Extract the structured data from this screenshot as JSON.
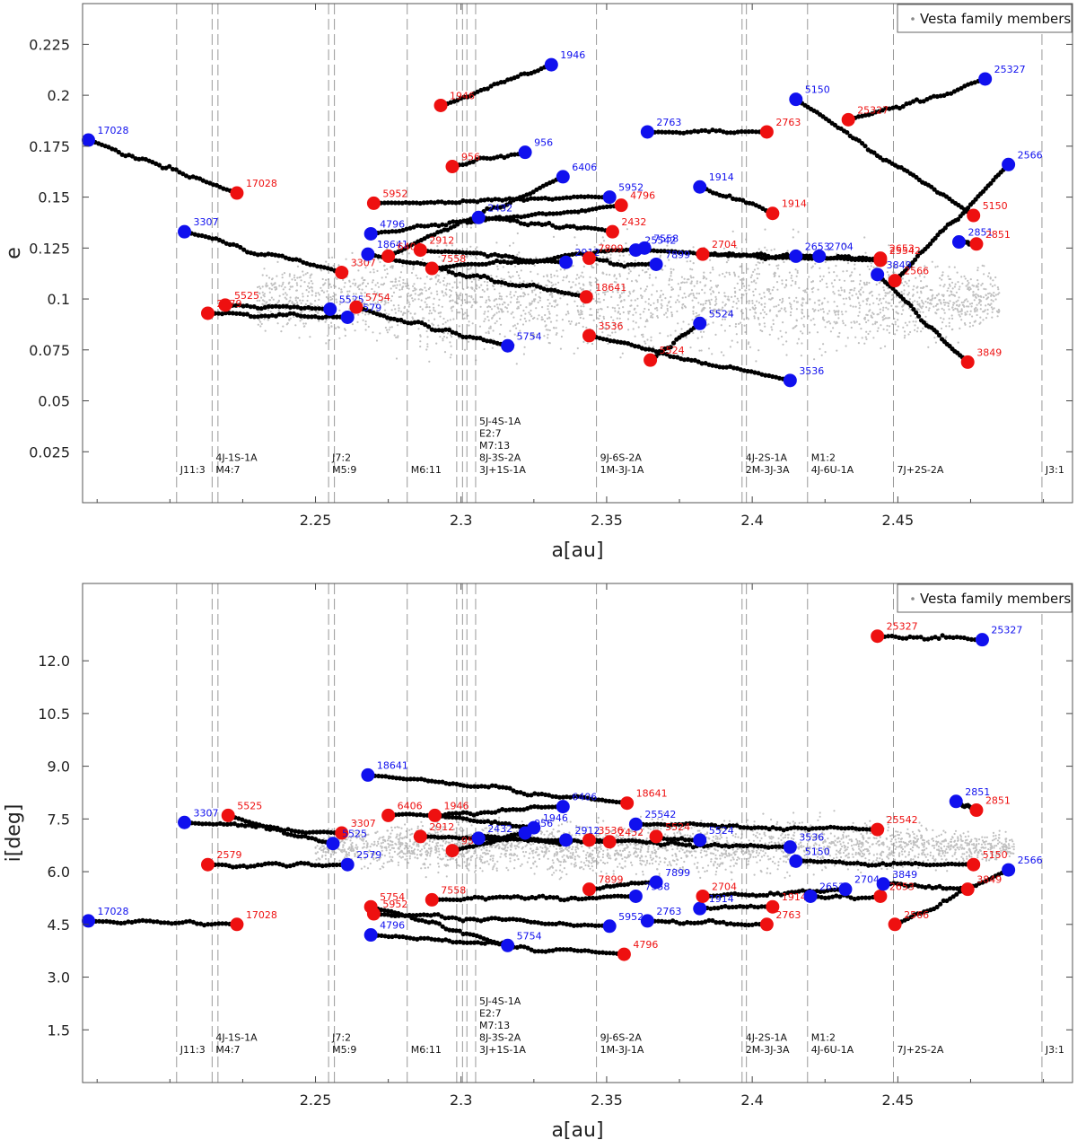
{
  "legend_label": "Vesta family members",
  "colors": {
    "background_members": "#c0c0c0",
    "track": "#000000",
    "start_marker": "#1010ee",
    "end_marker": "#ee1010",
    "resonance_line": "#999999"
  },
  "chart_data": [
    {
      "type": "scatter",
      "xlabel": "a[au]",
      "ylabel": "e",
      "xlim": [
        2.17,
        2.51
      ],
      "ylim": [
        0.0,
        0.245
      ],
      "xticks": [
        2.25,
        2.3,
        2.35,
        2.4,
        2.45
      ],
      "xtick_labels": [
        "2.25",
        "2.3",
        "2.35",
        "2.4",
        "2.45"
      ],
      "yticks": [
        0.025,
        0.05,
        0.075,
        0.1,
        0.125,
        0.15,
        0.175,
        0.2,
        0.225
      ],
      "ytick_labels": [
        "0.025",
        "0.05",
        "0.075",
        "0.1",
        "0.125",
        "0.15",
        "0.175",
        "0.2",
        "0.225"
      ],
      "legend_position": "top-right",
      "background_cloud": {
        "x_range": [
          2.23,
          2.485
        ],
        "y_center": 0.1,
        "y_halfwidth": 0.028
      },
      "tracks": [
        {
          "id": "17028",
          "start": [
            2.172,
            0.178
          ],
          "end": [
            2.223,
            0.152
          ]
        },
        {
          "id": "3307",
          "start": [
            2.205,
            0.133
          ],
          "end": [
            2.259,
            0.113
          ]
        },
        {
          "id": "2579",
          "start": [
            2.261,
            0.091
          ],
          "end": [
            2.213,
            0.093
          ]
        },
        {
          "id": "5525",
          "start": [
            2.255,
            0.095
          ],
          "end": [
            2.219,
            0.097
          ]
        },
        {
          "id": "18641",
          "start": [
            2.268,
            0.122
          ],
          "end": [
            2.343,
            0.101
          ]
        },
        {
          "id": "4796",
          "start": [
            2.269,
            0.132
          ],
          "end": [
            2.355,
            0.146
          ]
        },
        {
          "id": "5754",
          "start": [
            2.316,
            0.077
          ],
          "end": [
            2.264,
            0.096
          ]
        },
        {
          "id": "5952",
          "start": [
            2.351,
            0.15
          ],
          "end": [
            2.27,
            0.147
          ]
        },
        {
          "id": "6406",
          "start": [
            2.335,
            0.16
          ],
          "end": [
            2.275,
            0.121
          ]
        },
        {
          "id": "2912",
          "start": [
            2.336,
            0.118
          ],
          "end": [
            2.286,
            0.124
          ]
        },
        {
          "id": "7558",
          "start": [
            2.363,
            0.125
          ],
          "end": [
            2.29,
            0.115
          ]
        },
        {
          "id": "1946",
          "start": [
            2.331,
            0.215
          ],
          "end": [
            2.293,
            0.195
          ]
        },
        {
          "id": "956",
          "start": [
            2.322,
            0.172
          ],
          "end": [
            2.297,
            0.165
          ]
        },
        {
          "id": "2432",
          "start": [
            2.306,
            0.14
          ],
          "end": [
            2.352,
            0.133
          ]
        },
        {
          "id": "7899",
          "start": [
            2.367,
            0.117
          ],
          "end": [
            2.344,
            0.12
          ]
        },
        {
          "id": "25542",
          "start": [
            2.36,
            0.124
          ],
          "end": [
            2.444,
            0.119
          ]
        },
        {
          "id": "3536",
          "start": [
            2.413,
            0.06
          ],
          "end": [
            2.344,
            0.082
          ]
        },
        {
          "id": "5524",
          "start": [
            2.382,
            0.088
          ],
          "end": [
            2.365,
            0.07
          ]
        },
        {
          "id": "2763",
          "start": [
            2.364,
            0.182
          ],
          "end": [
            2.405,
            0.182
          ]
        },
        {
          "id": "2704",
          "start": [
            2.423,
            0.121
          ],
          "end": [
            2.383,
            0.122
          ]
        },
        {
          "id": "1914",
          "start": [
            2.382,
            0.155
          ],
          "end": [
            2.407,
            0.142
          ]
        },
        {
          "id": "5150",
          "start": [
            2.415,
            0.198
          ],
          "end": [
            2.476,
            0.141
          ]
        },
        {
          "id": "2653",
          "start": [
            2.415,
            0.121
          ],
          "end": [
            2.444,
            0.12
          ]
        },
        {
          "id": "25327",
          "start": [
            2.48,
            0.208
          ],
          "end": [
            2.433,
            0.188
          ]
        },
        {
          "id": "3849",
          "start": [
            2.443,
            0.112
          ],
          "end": [
            2.474,
            0.069
          ]
        },
        {
          "id": "2566",
          "start": [
            2.488,
            0.166
          ],
          "end": [
            2.449,
            0.109
          ]
        },
        {
          "id": "2851",
          "start": [
            2.471,
            0.128
          ],
          "end": [
            2.477,
            0.127
          ]
        }
      ]
    },
    {
      "type": "scatter",
      "xlabel": "a[au]",
      "ylabel": "i[deg]",
      "xlim": [
        2.17,
        2.51
      ],
      "ylim": [
        0.0,
        14.2
      ],
      "xticks": [
        2.25,
        2.3,
        2.35,
        2.4,
        2.45
      ],
      "xtick_labels": [
        "2.25",
        "2.3",
        "2.35",
        "2.4",
        "2.45"
      ],
      "yticks": [
        1.5,
        3.0,
        4.5,
        6.0,
        7.5,
        9.0,
        10.5,
        12.0
      ],
      "ytick_labels": [
        "1.5",
        "3.0",
        "4.5",
        "6.0",
        "7.5",
        "9.0",
        "10.5",
        "12.0"
      ],
      "legend_position": "top-right",
      "background_cloud": {
        "x_range": [
          2.25,
          2.49
        ],
        "y_center": 6.7,
        "y_halfwidth": 0.8
      },
      "tracks": [
        {
          "id": "17028",
          "start": [
            2.172,
            4.6
          ],
          "end": [
            2.223,
            4.5
          ]
        },
        {
          "id": "3307",
          "start": [
            2.205,
            7.4
          ],
          "end": [
            2.259,
            7.1
          ]
        },
        {
          "id": "5525",
          "start": [
            2.256,
            6.8
          ],
          "end": [
            2.22,
            7.6
          ]
        },
        {
          "id": "2579",
          "start": [
            2.261,
            6.2
          ],
          "end": [
            2.213,
            6.2
          ]
        },
        {
          "id": "18641",
          "start": [
            2.268,
            8.75
          ],
          "end": [
            2.357,
            7.95
          ]
        },
        {
          "id": "6406",
          "start": [
            2.335,
            7.85
          ],
          "end": [
            2.275,
            7.6
          ]
        },
        {
          "id": "1946",
          "start": [
            2.325,
            7.25
          ],
          "end": [
            2.291,
            7.6
          ]
        },
        {
          "id": "2912",
          "start": [
            2.336,
            6.9
          ],
          "end": [
            2.286,
            7.0
          ]
        },
        {
          "id": "956",
          "start": [
            2.322,
            7.1
          ],
          "end": [
            2.297,
            6.6
          ]
        },
        {
          "id": "2432",
          "start": [
            2.306,
            6.95
          ],
          "end": [
            2.351,
            6.85
          ]
        },
        {
          "id": "3536",
          "start": [
            2.413,
            6.7
          ],
          "end": [
            2.344,
            6.9
          ]
        },
        {
          "id": "5524",
          "start": [
            2.382,
            6.9
          ],
          "end": [
            2.367,
            7.0
          ]
        },
        {
          "id": "25542",
          "start": [
            2.36,
            7.35
          ],
          "end": [
            2.443,
            7.2
          ]
        },
        {
          "id": "5150",
          "start": [
            2.415,
            6.3
          ],
          "end": [
            2.476,
            6.2
          ]
        },
        {
          "id": "2566",
          "start": [
            2.488,
            6.05
          ],
          "end": [
            2.449,
            4.5
          ]
        },
        {
          "id": "2851",
          "start": [
            2.47,
            8.0
          ],
          "end": [
            2.477,
            7.75
          ]
        },
        {
          "id": "25327",
          "start": [
            2.479,
            12.6
          ],
          "end": [
            2.443,
            12.7
          ]
        },
        {
          "id": "7899",
          "start": [
            2.367,
            5.7
          ],
          "end": [
            2.344,
            5.5
          ]
        },
        {
          "id": "7558",
          "start": [
            2.36,
            5.3
          ],
          "end": [
            2.29,
            5.2
          ]
        },
        {
          "id": "5754",
          "start": [
            2.316,
            3.9
          ],
          "end": [
            2.269,
            5.0
          ]
        },
        {
          "id": "5952",
          "start": [
            2.351,
            4.45
          ],
          "end": [
            2.27,
            4.8
          ]
        },
        {
          "id": "4796",
          "start": [
            2.269,
            4.2
          ],
          "end": [
            2.356,
            3.65
          ]
        },
        {
          "id": "2763",
          "start": [
            2.364,
            4.6
          ],
          "end": [
            2.405,
            4.5
          ]
        },
        {
          "id": "1914",
          "start": [
            2.382,
            4.95
          ],
          "end": [
            2.407,
            5.0
          ]
        },
        {
          "id": "2704",
          "start": [
            2.432,
            5.5
          ],
          "end": [
            2.383,
            5.3
          ]
        },
        {
          "id": "2653",
          "start": [
            2.42,
            5.3
          ],
          "end": [
            2.444,
            5.3
          ]
        },
        {
          "id": "3849",
          "start": [
            2.445,
            5.65
          ],
          "end": [
            2.474,
            5.5
          ]
        }
      ]
    }
  ],
  "resonances": [
    {
      "a": 2.2023,
      "lines": [
        "J11:3"
      ]
    },
    {
      "a": 2.2145,
      "lines": [
        "4J-1S-1A",
        "M4:7"
      ]
    },
    {
      "a": 2.2165,
      "lines": []
    },
    {
      "a": 2.2545,
      "lines": [
        "J7:2",
        "M5:9"
      ]
    },
    {
      "a": 2.2565,
      "lines": []
    },
    {
      "a": 2.2815,
      "lines": [
        "M6:11"
      ]
    },
    {
      "a": 2.2985,
      "lines": []
    },
    {
      "a": 2.3005,
      "lines": []
    },
    {
      "a": 2.302,
      "lines": []
    },
    {
      "a": 2.305,
      "lines": [
        "5J-4S-1A",
        "E2:7",
        "M7:13",
        "8J-3S-2A",
        "3J+1S-1A"
      ]
    },
    {
      "a": 2.3465,
      "lines": [
        "9J-6S-2A",
        "1M-3J-1A"
      ]
    },
    {
      "a": 2.3965,
      "lines": [
        "4J-2S-1A",
        "2M-3J-3A"
      ]
    },
    {
      "a": 2.398,
      "lines": []
    },
    {
      "a": 2.419,
      "lines": [
        "M1:2",
        "4J-6U-1A"
      ]
    },
    {
      "a": 2.4485,
      "lines": [
        "7J+2S-2A"
      ]
    },
    {
      "a": 2.4995,
      "lines": [
        "J3:1"
      ]
    }
  ]
}
